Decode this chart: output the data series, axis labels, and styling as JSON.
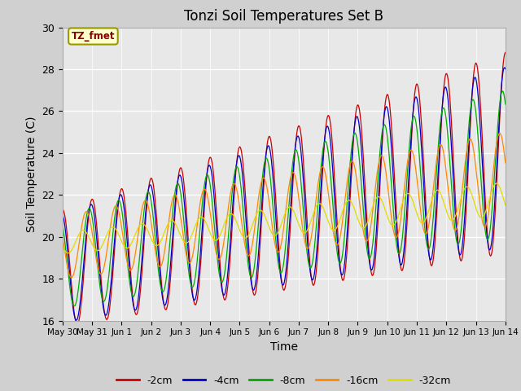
{
  "title": "Tonzi Soil Temperatures Set B",
  "xlabel": "Time",
  "ylabel": "Soil Temperature (C)",
  "ylim": [
    16,
    30
  ],
  "num_days": 15,
  "points_per_day": 48,
  "series_colors": [
    "#cc0000",
    "#0000cc",
    "#00aa00",
    "#ff8800",
    "#dddd00"
  ],
  "series_labels": [
    "-2cm",
    "-4cm",
    "-8cm",
    "-16cm",
    "-32cm"
  ],
  "annotation_text": "TZ_fmet",
  "annotation_bg": "#ffffcc",
  "annotation_fg": "#880000",
  "annotation_edge": "#999900",
  "tick_labels": [
    "May 30",
    "May 31",
    "Jun 1",
    "Jun 2",
    "Jun 3",
    "Jun 4",
    "Jun 5",
    "Jun 6",
    "Jun 7",
    "Jun 8",
    "Jun 9",
    "Jun 10",
    "Jun 11",
    "Jun 12",
    "Jun 13",
    "Jun 14"
  ],
  "yticks": [
    16,
    18,
    20,
    22,
    24,
    26,
    28,
    30
  ],
  "fig_bg": "#d0d0d0",
  "axes_bg": "#e8e8e8",
  "grid_color": "#ffffff",
  "trend_start": [
    18.5,
    18.5,
    18.8,
    19.5,
    19.7
  ],
  "trend_end": [
    24.0,
    23.8,
    23.5,
    22.8,
    21.8
  ],
  "amp_start": [
    2.8,
    2.6,
    2.2,
    1.5,
    0.5
  ],
  "amp_end": [
    4.8,
    4.3,
    3.5,
    2.2,
    0.8
  ],
  "phases": [
    1.57,
    1.77,
    2.2,
    2.8,
    3.5
  ]
}
